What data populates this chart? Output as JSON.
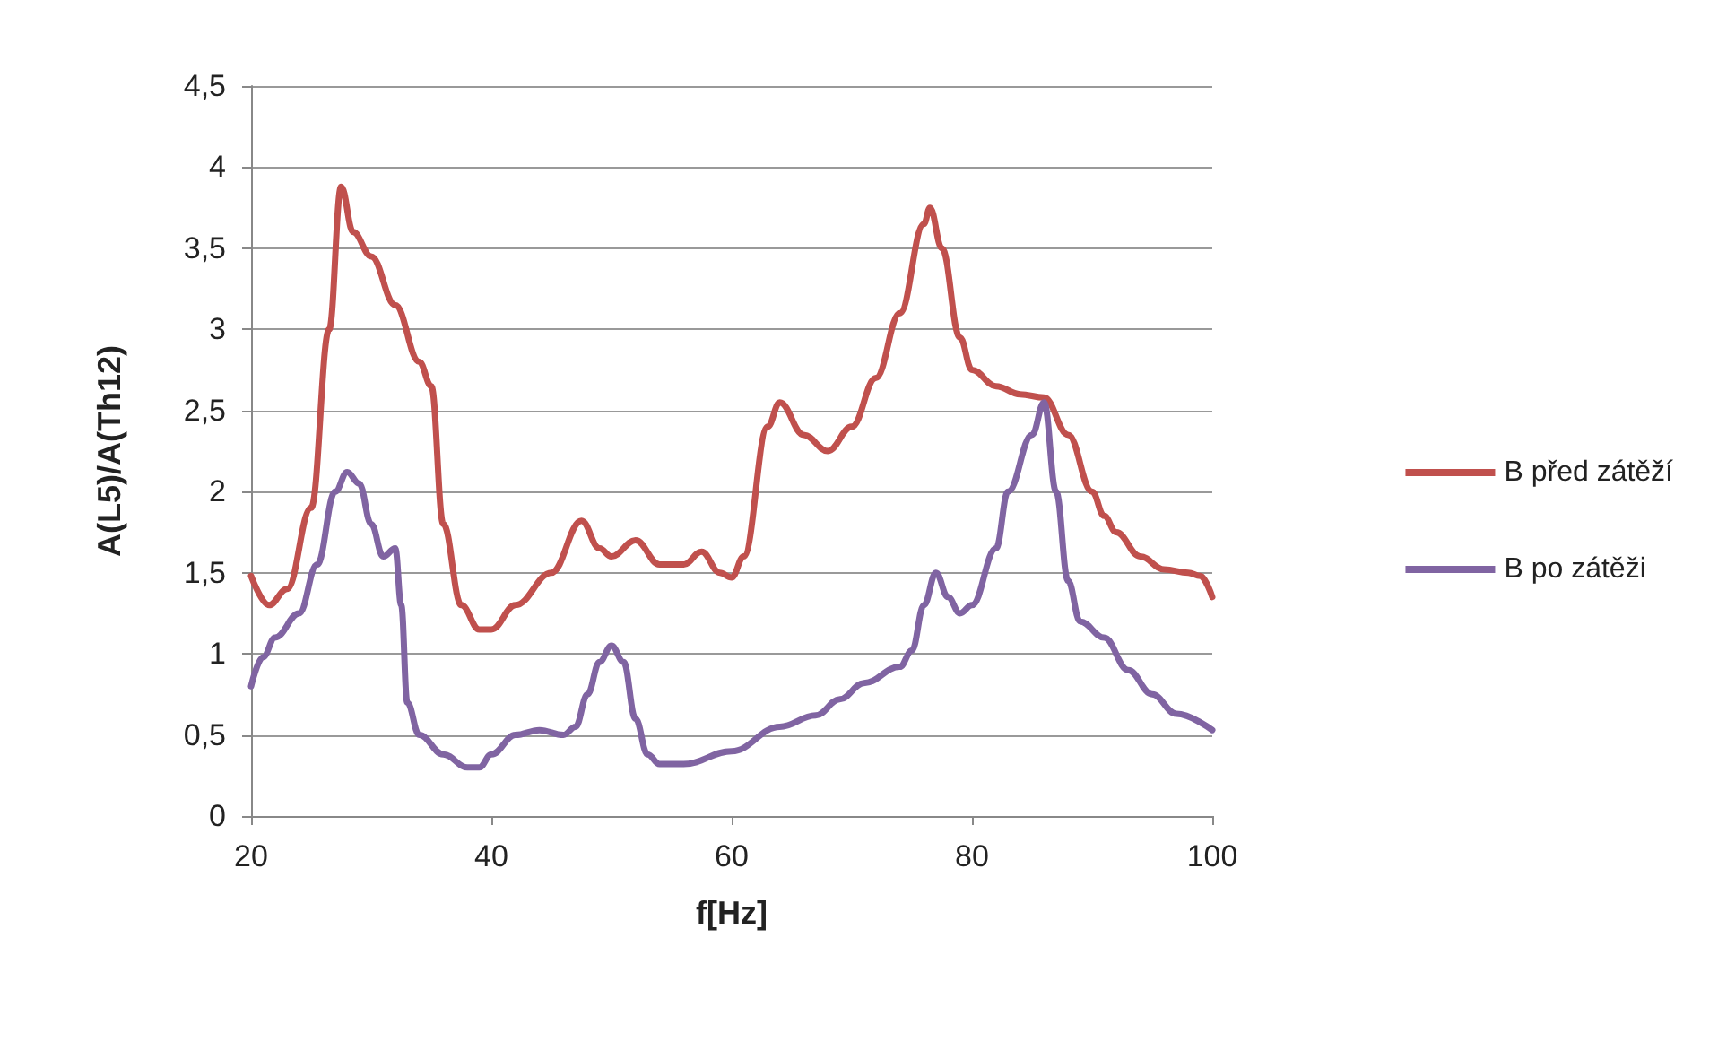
{
  "chart_data": {
    "type": "line",
    "xlabel": "f[Hz]",
    "ylabel": "A(L5)/A(Th12)",
    "xlim": [
      20,
      100
    ],
    "xticks": [
      20,
      40,
      60,
      80,
      100
    ],
    "ylim": [
      0,
      4.5
    ],
    "yticks": [
      0,
      {
        "value": 0.5,
        "label": "0,5"
      },
      1,
      {
        "value": 1.5,
        "label": "1,5"
      },
      2,
      {
        "value": 2.5,
        "label": "2,5"
      },
      3,
      {
        "value": 3.5,
        "label": "3,5"
      },
      4,
      {
        "value": 4.5,
        "label": "4,5"
      }
    ],
    "grid": "y",
    "legend": "right",
    "marker": "none",
    "line_style": "solid",
    "series": [
      {
        "name": "B před zátěží",
        "color": "#c0504d",
        "x": [
          20,
          21.5,
          23,
          25,
          26.5,
          27.5,
          28.5,
          30,
          32,
          34,
          35,
          36,
          37.5,
          39,
          40,
          42,
          45,
          47.5,
          49,
          50,
          52,
          54,
          56,
          57.5,
          59,
          60,
          61,
          63,
          64,
          66,
          68,
          70,
          72,
          74,
          76,
          76.5,
          77.5,
          79,
          80,
          82,
          84,
          86,
          88,
          90,
          91,
          92,
          94,
          96,
          98,
          99,
          100
        ],
        "values": [
          1.48,
          1.3,
          1.4,
          1.9,
          3.0,
          3.88,
          3.6,
          3.45,
          3.15,
          2.8,
          2.65,
          1.8,
          1.3,
          1.15,
          1.15,
          1.3,
          1.5,
          1.82,
          1.65,
          1.6,
          1.7,
          1.55,
          1.55,
          1.63,
          1.5,
          1.47,
          1.6,
          2.4,
          2.55,
          2.35,
          2.25,
          2.4,
          2.7,
          3.1,
          3.65,
          3.75,
          3.5,
          2.95,
          2.75,
          2.65,
          2.6,
          2.58,
          2.35,
          2.0,
          1.85,
          1.75,
          1.6,
          1.52,
          1.5,
          1.48,
          1.35
        ]
      },
      {
        "name": "B po zátěži",
        "color": "#8064a2",
        "x": [
          20,
          21,
          22,
          24,
          25.5,
          27,
          28,
          29,
          30,
          31,
          32,
          32.5,
          33,
          34,
          36,
          38,
          39,
          40,
          42,
          44,
          46,
          47,
          48,
          49,
          50,
          51,
          52,
          53,
          54,
          56,
          60,
          64,
          67,
          69,
          71,
          74,
          75,
          76,
          77,
          78,
          79,
          80,
          82,
          83,
          85,
          86,
          87,
          88,
          89,
          91,
          93,
          95,
          97,
          100
        ],
        "values": [
          0.8,
          0.98,
          1.1,
          1.25,
          1.55,
          2.0,
          2.12,
          2.05,
          1.8,
          1.6,
          1.65,
          1.3,
          0.7,
          0.5,
          0.38,
          0.3,
          0.3,
          0.38,
          0.5,
          0.53,
          0.5,
          0.55,
          0.75,
          0.95,
          1.05,
          0.95,
          0.6,
          0.38,
          0.32,
          0.32,
          0.4,
          0.55,
          0.62,
          0.72,
          0.82,
          0.92,
          1.02,
          1.3,
          1.5,
          1.35,
          1.25,
          1.3,
          1.65,
          2.0,
          2.35,
          2.55,
          2.0,
          1.45,
          1.2,
          1.1,
          0.9,
          0.75,
          0.63,
          0.53
        ]
      }
    ]
  }
}
